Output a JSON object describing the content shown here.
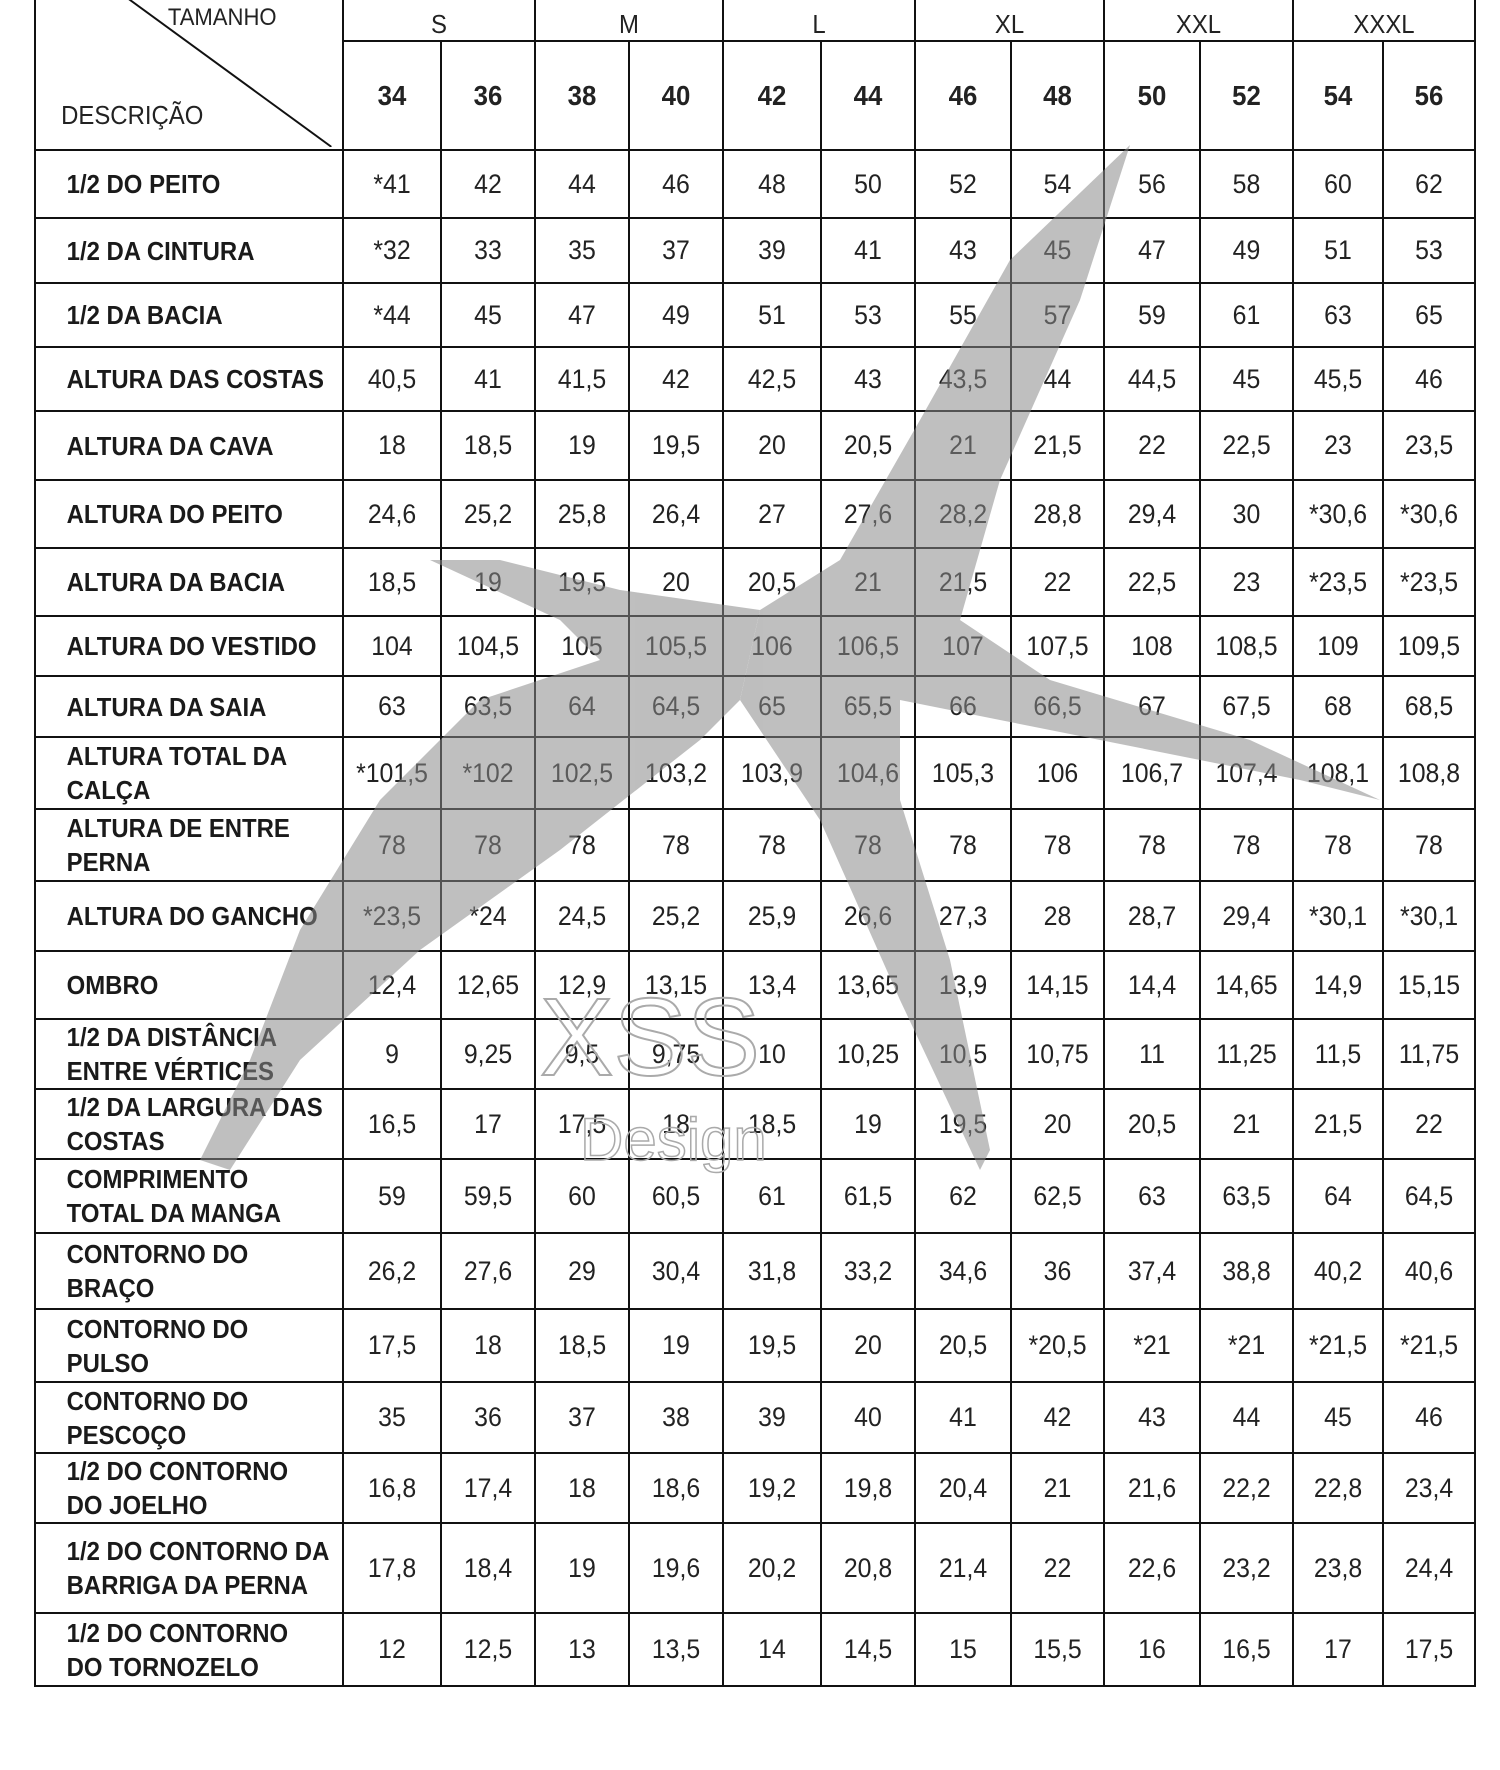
{
  "header": {
    "corner_top": "TAMANHO",
    "corner_bottom": "DESCRIÇÃO",
    "sizes": [
      "S",
      "M",
      "L",
      "XL",
      "XXL",
      "XXXL"
    ],
    "numbers": [
      "34",
      "36",
      "38",
      "40",
      "42",
      "44",
      "46",
      "48",
      "50",
      "52",
      "54",
      "56"
    ]
  },
  "rows": [
    {
      "label": "1/2 DO PEITO",
      "values": [
        "*41",
        "42",
        "44",
        "46",
        "48",
        "50",
        "52",
        "54",
        "56",
        "58",
        "60",
        "62"
      ]
    },
    {
      "label": "1/2 DA CINTURA",
      "values": [
        "*32",
        "33",
        "35",
        "37",
        "39",
        "41",
        "43",
        "45",
        "47",
        "49",
        "51",
        "53"
      ]
    },
    {
      "label": "1/2 DA BACIA",
      "values": [
        "*44",
        "45",
        "47",
        "49",
        "51",
        "53",
        "55",
        "57",
        "59",
        "61",
        "63",
        "65"
      ]
    },
    {
      "label": "ALTURA DAS COSTAS",
      "values": [
        "40,5",
        "41",
        "41,5",
        "42",
        "42,5",
        "43",
        "43,5",
        "44",
        "44,5",
        "45",
        "45,5",
        "46"
      ]
    },
    {
      "label": "ALTURA DA CAVA",
      "values": [
        "18",
        "18,5",
        "19",
        "19,5",
        "20",
        "20,5",
        "21",
        "21,5",
        "22",
        "22,5",
        "23",
        "23,5"
      ]
    },
    {
      "label": "ALTURA DO PEITO",
      "values": [
        "24,6",
        "25,2",
        "25,8",
        "26,4",
        "27",
        "27,6",
        "28,2",
        "28,8",
        "29,4",
        "30",
        "*30,6",
        "*30,6"
      ]
    },
    {
      "label": "ALTURA DA BACIA",
      "values": [
        "18,5",
        "19",
        "19,5",
        "20",
        "20,5",
        "21",
        "21,5",
        "22",
        "22,5",
        "23",
        "*23,5",
        "*23,5"
      ]
    },
    {
      "label": "ALTURA DO VESTIDO",
      "values": [
        "104",
        "104,5",
        "105",
        "105,5",
        "106",
        "106,5",
        "107",
        "107,5",
        "108",
        "108,5",
        "109",
        "109,5"
      ]
    },
    {
      "label": "ALTURA DA SAIA",
      "values": [
        "63",
        "63,5",
        "64",
        "64,5",
        "65",
        "65,5",
        "66",
        "66,5",
        "67",
        "67,5",
        "68",
        "68,5"
      ]
    },
    {
      "label": "ALTURA TOTAL DA CALÇA",
      "values": [
        "*101,5",
        "*102",
        "102,5",
        "103,2",
        "103,9",
        "104,6",
        "105,3",
        "106",
        "106,7",
        "107,4",
        "108,1",
        "108,8"
      ]
    },
    {
      "label": "ALTURA DE ENTRE PERNA",
      "values": [
        "78",
        "78",
        "78",
        "78",
        "78",
        "78",
        "78",
        "78",
        "78",
        "78",
        "78",
        "78"
      ]
    },
    {
      "label": "ALTURA DO GANCHO",
      "values": [
        "*23,5",
        "*24",
        "24,5",
        "25,2",
        "25,9",
        "26,6",
        "27,3",
        "28",
        "28,7",
        "29,4",
        "*30,1",
        "*30,1"
      ]
    },
    {
      "label": "OMBRO",
      "values": [
        "12,4",
        "12,65",
        "12,9",
        "13,15",
        "13,4",
        "13,65",
        "13,9",
        "14,15",
        "14,4",
        "14,65",
        "14,9",
        "15,15"
      ]
    },
    {
      "label": "1/2 DA DISTÂNCIA ENTRE VÉRTICES",
      "values": [
        "9",
        "9,25",
        "9,5",
        "9,75",
        "10",
        "10,25",
        "10,5",
        "10,75",
        "11",
        "11,25",
        "11,5",
        "11,75"
      ]
    },
    {
      "label": "1/2 DA LARGURA DAS COSTAS",
      "values": [
        "16,5",
        "17",
        "17,5",
        "18",
        "18,5",
        "19",
        "19,5",
        "20",
        "20,5",
        "21",
        "21,5",
        "22"
      ]
    },
    {
      "label": "COMPRIMENTO TOTAL DA MANGA",
      "values": [
        "59",
        "59,5",
        "60",
        "60,5",
        "61",
        "61,5",
        "62",
        "62,5",
        "63",
        "63,5",
        "64",
        "64,5"
      ]
    },
    {
      "label": "CONTORNO DO BRAÇO",
      "values": [
        "26,2",
        "27,6",
        "29",
        "30,4",
        "31,8",
        "33,2",
        "34,6",
        "36",
        "37,4",
        "38,8",
        "40,2",
        "40,6"
      ]
    },
    {
      "label": "CONTORNO DO PULSO",
      "values": [
        "17,5",
        "18",
        "18,5",
        "19",
        "19,5",
        "20",
        "20,5",
        "*20,5",
        "*21",
        "*21",
        "*21,5",
        "*21,5"
      ]
    },
    {
      "label": "CONTORNO DO PESCOÇO",
      "values": [
        "35",
        "36",
        "37",
        "38",
        "39",
        "40",
        "41",
        "42",
        "43",
        "44",
        "45",
        "46"
      ]
    },
    {
      "label": "1/2 DO CONTORNO DO JOELHO",
      "values": [
        "16,8",
        "17,4",
        "18",
        "18,6",
        "19,2",
        "19,8",
        "20,4",
        "21",
        "21,6",
        "22,2",
        "22,8",
        "23,4"
      ]
    },
    {
      "label": "1/2 DO CONTORNO DA BARRIGA DA PERNA",
      "values": [
        "17,8",
        "18,4",
        "19",
        "19,6",
        "20,2",
        "20,8",
        "21,4",
        "22",
        "22,6",
        "23,2",
        "23,8",
        "24,4"
      ]
    },
    {
      "label": "1/2 DO CONTORNO DO TORNOZELO",
      "values": [
        "12",
        "12,5",
        "13",
        "13,5",
        "14",
        "14,5",
        "15",
        "15,5",
        "16",
        "16,5",
        "17",
        "17,5"
      ]
    }
  ],
  "watermark": {
    "line1": "XSS",
    "line2": "Design",
    "color": "#7a7a7a"
  }
}
